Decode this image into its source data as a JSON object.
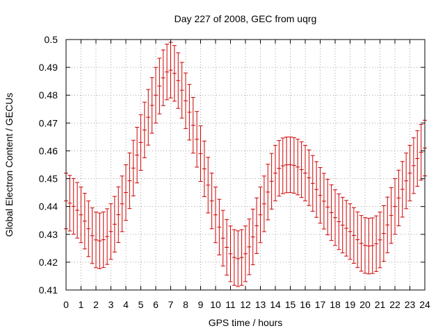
{
  "chart_data": {
    "type": "scatter",
    "title": "Day 227 of 2008, GEC from uqrg",
    "xlabel": "GPS time / hours",
    "ylabel": "Global Electron Content / GECUs",
    "xlim": [
      0,
      24
    ],
    "ylim": [
      0.41,
      0.5
    ],
    "xticks": [
      0,
      1,
      2,
      3,
      4,
      5,
      6,
      7,
      8,
      9,
      10,
      11,
      12,
      13,
      14,
      15,
      16,
      17,
      18,
      19,
      20,
      21,
      22,
      23,
      24
    ],
    "yticks": [
      0.41,
      0.42,
      0.43,
      0.44,
      0.45,
      0.46,
      0.47,
      0.48,
      0.49,
      0.5
    ],
    "xtick_labels": [
      "0",
      "1",
      "2",
      "3",
      "4",
      "5",
      "6",
      "7",
      "8",
      "9",
      "10",
      "11",
      "12",
      "13",
      "14",
      "15",
      "16",
      "17",
      "18",
      "19",
      "20",
      "21",
      "22",
      "23",
      "24"
    ],
    "ytick_labels": [
      "0.41",
      "0.42",
      "0.43",
      "0.44",
      "0.45",
      "0.46",
      "0.47",
      "0.48",
      "0.49",
      "0.5"
    ],
    "grid": true,
    "error_bar": 0.01,
    "series_color": "#cc0000",
    "grid_color": "#a0a0a0",
    "anchor_hours": [
      0,
      1,
      2,
      3,
      4,
      5,
      6,
      7,
      8,
      9,
      10,
      11,
      12,
      13,
      14,
      15,
      16,
      17,
      18,
      19,
      20,
      21,
      22,
      23,
      24
    ],
    "anchor_values": [
      0.442,
      0.437,
      0.428,
      0.431,
      0.445,
      0.463,
      0.48,
      0.489,
      0.478,
      0.459,
      0.437,
      0.423,
      0.423,
      0.437,
      0.452,
      0.455,
      0.452,
      0.444,
      0.436,
      0.431,
      0.426,
      0.428,
      0.44,
      0.452,
      0.461
    ],
    "sample_step_hours": 0.25
  }
}
